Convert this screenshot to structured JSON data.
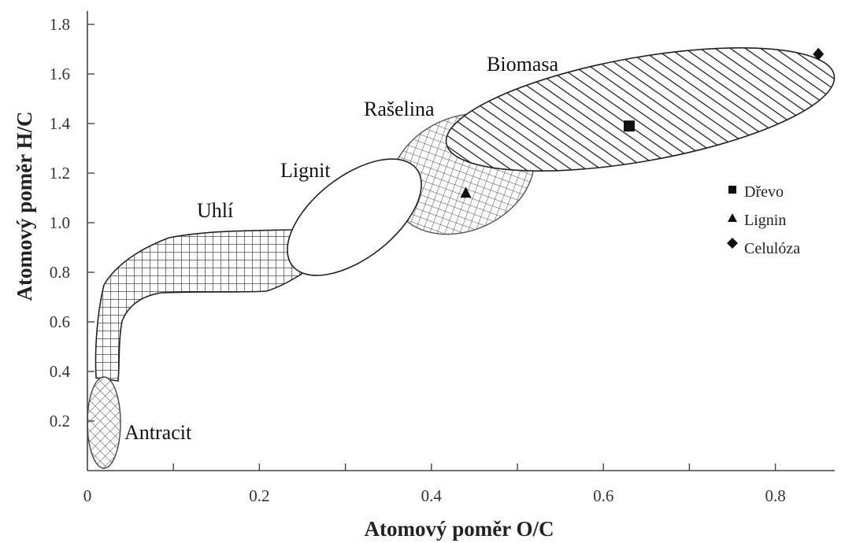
{
  "chart_data": {
    "type": "scatter",
    "title": "",
    "xlabel": "Atomový poměr O/C",
    "ylabel": "Atomový poměr H/C",
    "xlim": [
      0,
      0.88
    ],
    "ylim": [
      0,
      1.85
    ],
    "x_ticks": [
      0,
      0.2,
      0.4,
      0.6,
      0.8
    ],
    "x_tick_labels": [
      "0",
      "0.2",
      "0.4",
      "0.6",
      "0.8"
    ],
    "y_ticks": [
      0.2,
      0.4,
      0.6,
      0.8,
      1.0,
      1.2,
      1.4,
      1.6,
      1.8
    ],
    "y_tick_labels": [
      "0.2",
      "0.4",
      "0.6",
      "0.8",
      "1.0",
      "1.2",
      "1.4",
      "1.6",
      "1.8"
    ],
    "grid": false,
    "legend_position": "right",
    "regions": [
      {
        "name": "Antracit",
        "pattern": "crosshatch-diagonal",
        "x_range": [
          0.005,
          0.04
        ],
        "y_range": [
          0.03,
          0.38
        ]
      },
      {
        "name": "Uhlí",
        "pattern": "grid",
        "x_range": [
          0.01,
          0.25
        ],
        "y_range": [
          0.35,
          0.98
        ]
      },
      {
        "name": "Lignit",
        "pattern": "none",
        "x_range": [
          0.22,
          0.38
        ],
        "y_range": [
          0.8,
          1.24
        ]
      },
      {
        "name": "Rašelina",
        "pattern": "crosshatch-diagonal",
        "x_range": [
          0.34,
          0.52
        ],
        "y_range": [
          0.88,
          1.44
        ]
      },
      {
        "name": "Biomasa",
        "pattern": "diagonal",
        "x_range": [
          0.41,
          0.88
        ],
        "y_range": [
          1.18,
          1.7
        ]
      }
    ],
    "series": [
      {
        "name": "Dřevo",
        "marker": "square",
        "x": [
          0.63
        ],
        "y": [
          1.39
        ]
      },
      {
        "name": "Lignin",
        "marker": "triangle",
        "x": [
          0.44
        ],
        "y": [
          1.12
        ]
      },
      {
        "name": "Celulóza",
        "marker": "diamond",
        "x": [
          0.85
        ],
        "y": [
          1.68
        ]
      }
    ]
  }
}
